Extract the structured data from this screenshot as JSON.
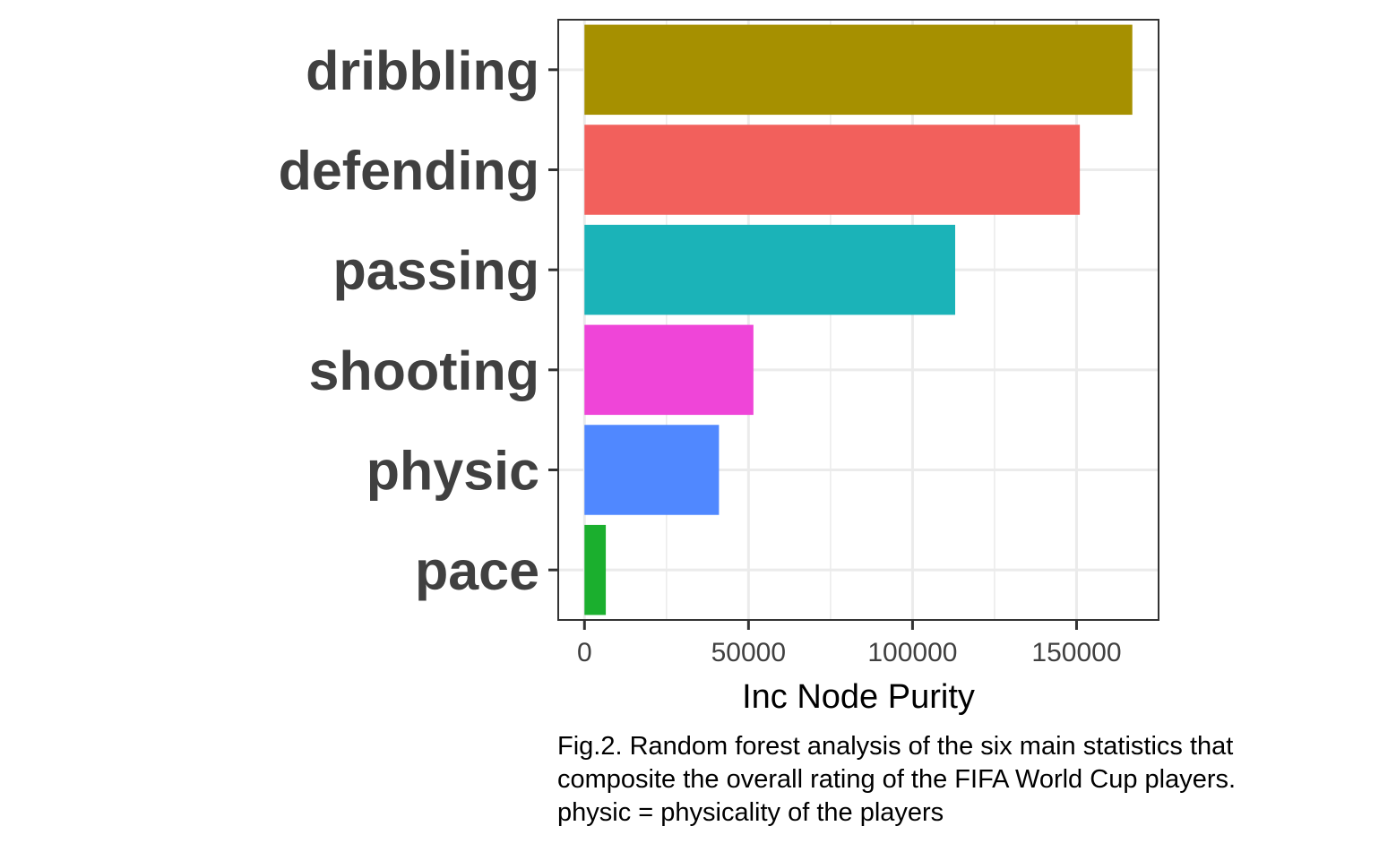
{
  "chart_data": {
    "type": "bar",
    "orientation": "horizontal",
    "categories": [
      "dribbling",
      "defending",
      "passing",
      "shooting",
      "physic",
      "pace"
    ],
    "values": [
      167000,
      151000,
      113000,
      51500,
      41000,
      6500
    ],
    "colors": [
      "#A69000",
      "#F2605C",
      "#1BB3B8",
      "#EF45D8",
      "#5088FF",
      "#1BAF2E"
    ],
    "xlabel": "Inc Node Purity",
    "ylabel": "",
    "xlim": [
      -8000,
      175000
    ],
    "xticks": [
      0,
      50000,
      100000,
      150000
    ],
    "xtick_labels": [
      "0",
      "50000",
      "100000",
      "150000"
    ],
    "grid": true,
    "legend": "none"
  },
  "caption": {
    "lines": [
      "Fig.2. Random forest analysis of the six main statistics that",
      "composite the overall rating of the FIFA World Cup players.",
      "physic = physicality of the players"
    ]
  }
}
